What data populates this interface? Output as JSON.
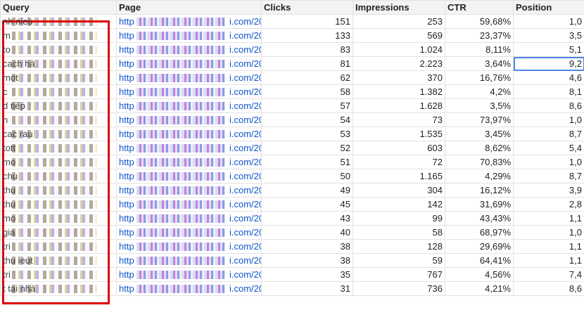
{
  "columns": {
    "query": "Query",
    "page": "Page",
    "clicks": "Clicks",
    "impressions": "Impressions",
    "ctr": "CTR",
    "position": "Position"
  },
  "rows": [
    {
      "query": "nh                    nieu",
      "page_prefix": "http",
      "page_suffix": "i.com/20",
      "clicks": "151",
      "impressions": "253",
      "ctr": "59,68%",
      "position": "1,0"
    },
    {
      "query": "m",
      "page_prefix": "http",
      "page_suffix": "i.com/20",
      "clicks": "133",
      "impressions": "569",
      "ctr": "23,37%",
      "position": "3,5"
    },
    {
      "query": "to",
      "page_prefix": "http",
      "page_suffix": "i.com/20",
      "clicks": "83",
      "impressions": "1.024",
      "ctr": "8,11%",
      "position": "5,1"
    },
    {
      "query": "cach                       hà",
      "page_prefix": "http",
      "page_suffix": "i.com/20",
      "clicks": "81",
      "impressions": "2.223",
      "ctr": "3,64%",
      "position": "9,2"
    },
    {
      "query": "mot",
      "page_prefix": "http",
      "page_suffix": "i.com/20",
      "clicks": "62",
      "impressions": "370",
      "ctr": "16,76%",
      "position": "4,6"
    },
    {
      "query": "c",
      "page_prefix": "http",
      "page_suffix": "i.com/20",
      "clicks": "58",
      "impressions": "1.382",
      "ctr": "4,2%",
      "position": "8,1"
    },
    {
      "query": "d                          tiếp",
      "page_prefix": "http",
      "page_suffix": "i.com/20",
      "clicks": "57",
      "impressions": "1.628",
      "ctr": "3,5%",
      "position": "8,6"
    },
    {
      "query": "n",
      "page_prefix": "http",
      "page_suffix": "i.com/20",
      "clicks": "54",
      "impressions": "73",
      "ctr": "73,97%",
      "position": "1,0"
    },
    {
      "query": "cac                         rau",
      "page_prefix": "http",
      "page_suffix": "i.com/20",
      "clicks": "53",
      "impressions": "1.535",
      "ctr": "3,45%",
      "position": "8,7"
    },
    {
      "query": "tott",
      "page_prefix": "http",
      "page_suffix": "i.com/20",
      "clicks": "52",
      "impressions": "603",
      "ctr": "8,62%",
      "position": "5,4"
    },
    {
      "query": "mo",
      "page_prefix": "http",
      "page_suffix": "i.com/20",
      "clicks": "51",
      "impressions": "72",
      "ctr": "70,83%",
      "position": "1,0"
    },
    {
      "query": "chu",
      "page_prefix": "http",
      "page_suffix": "i.com/20",
      "clicks": "50",
      "impressions": "1.165",
      "ctr": "4,29%",
      "position": "8,7"
    },
    {
      "query": "thu",
      "page_prefix": "http",
      "page_suffix": "i.com/20",
      "clicks": "49",
      "impressions": "304",
      "ctr": "16,12%",
      "position": "3,9"
    },
    {
      "query": "thu",
      "page_prefix": "http",
      "page_suffix": "i.com/20",
      "clicks": "45",
      "impressions": "142",
      "ctr": "31,69%",
      "position": "2,8"
    },
    {
      "query": "mo",
      "page_prefix": "http",
      "page_suffix": "i.com/20",
      "clicks": "43",
      "impressions": "99",
      "ctr": "43,43%",
      "position": "1,1"
    },
    {
      "query": "gia",
      "page_prefix": "http",
      "page_suffix": "i.com/20",
      "clicks": "40",
      "impressions": "58",
      "ctr": "68,97%",
      "position": "1,0"
    },
    {
      "query": "tri",
      "page_prefix": "http",
      "page_suffix": "i.com/20",
      "clicks": "38",
      "impressions": "128",
      "ctr": "29,69%",
      "position": "1,1"
    },
    {
      "query": "thu                          ieut",
      "page_prefix": "http",
      "page_suffix": "i.com/20",
      "clicks": "38",
      "impressions": "59",
      "ctr": "64,41%",
      "position": "1,1"
    },
    {
      "query": "tri",
      "page_prefix": "http",
      "page_suffix": "i.com/20",
      "clicks": "35",
      "impressions": "767",
      "ctr": "4,56%",
      "position": "7,4"
    },
    {
      "query": "t              tại nhà",
      "page_prefix": "http",
      "page_suffix": "i.com/20",
      "clicks": "31",
      "impressions": "736",
      "ctr": "4,21%",
      "position": "8,6"
    }
  ],
  "selected_cell": {
    "row": 3,
    "column": "position"
  },
  "colors": {
    "link": "#1155cc",
    "highlight_box": "#e00000",
    "selection": "#4a86e8",
    "header_bg": "#f3f3f3",
    "grid": "#e2e2e2"
  }
}
